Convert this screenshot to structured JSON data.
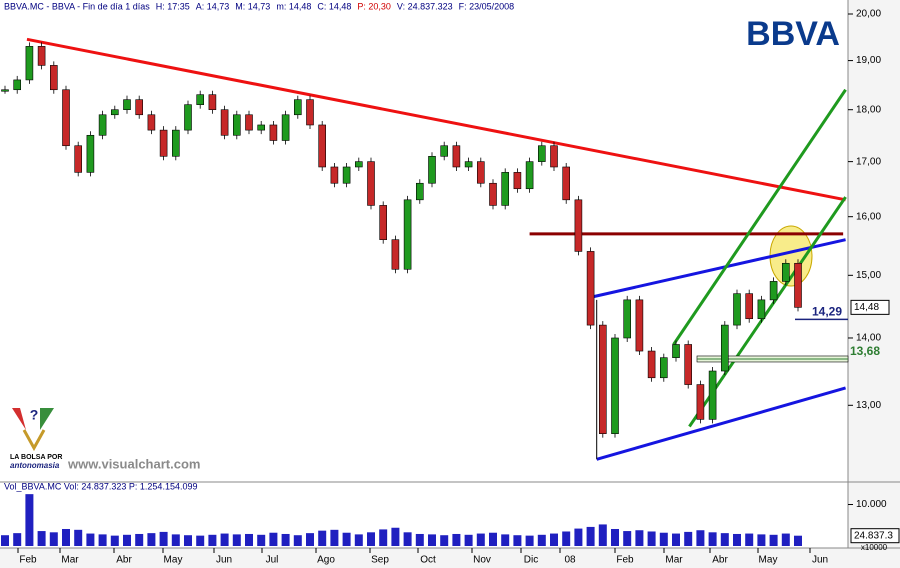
{
  "chart_data": {
    "type": "candlestick",
    "header": [
      "BBVA.MC - BBVA - Fin de día 1 días",
      "H: 17:35",
      "A: 14,73",
      "M: 14,73",
      "m: 14,48",
      "C: 14,48",
      "P: 20,30",
      "V: 24.837.323",
      "F: 23/05/2008"
    ],
    "logo": "BBVA",
    "watermark": "www.visualchart.com",
    "badge": [
      "LA BOLSA POR",
      "antonomasia"
    ],
    "months": [
      "Feb",
      "Mar",
      "Abr",
      "May",
      "Jun",
      "Jul",
      "Ago",
      "Sep",
      "Oct",
      "Nov",
      "Dic",
      "08",
      "Feb",
      "Mar",
      "Abr",
      "May",
      "Jun"
    ],
    "log_scale": true,
    "ylim": [
      12,
      20
    ],
    "yticks": [
      {
        "value": 20,
        "label": "20,00"
      },
      {
        "value": 19,
        "label": "19,00"
      },
      {
        "value": 18,
        "label": "18,00"
      },
      {
        "value": 17,
        "label": "17,00"
      },
      {
        "value": 16,
        "label": "16,00"
      },
      {
        "value": 15,
        "label": "15,00"
      },
      {
        "value": 14,
        "label": "14,00"
      },
      {
        "value": 13,
        "label": "13,00"
      }
    ],
    "close": [
      18.4,
      18.6,
      19.3,
      18.9,
      18.4,
      17.3,
      16.8,
      17.5,
      17.9,
      18.0,
      18.2,
      17.9,
      17.6,
      17.1,
      17.6,
      18.1,
      18.3,
      18.0,
      17.5,
      17.9,
      17.6,
      17.7,
      17.4,
      17.9,
      18.2,
      17.7,
      16.9,
      16.6,
      16.9,
      17.0,
      16.2,
      15.6,
      15.1,
      16.3,
      16.6,
      17.1,
      17.3,
      16.9,
      17.0,
      16.6,
      16.2,
      16.8,
      16.5,
      17.0,
      17.3,
      16.9,
      16.3,
      15.4,
      14.2,
      12.6,
      14.0,
      14.6,
      13.8,
      13.4,
      13.7,
      13.9,
      13.3,
      12.8,
      13.5,
      14.2,
      14.7,
      14.3,
      14.6,
      14.9,
      15.2,
      14.48
    ],
    "last": {
      "value": 14.48,
      "label": "14,48"
    },
    "levels": [
      {
        "value": 14.29,
        "label": "14,29",
        "color": "#1a237e"
      },
      {
        "value": 13.68,
        "label": "13,68",
        "color": "#2e7d32"
      }
    ],
    "trendlines": [
      {
        "color": "#ee1111",
        "x": [
          1.8,
          68.9
        ],
        "y": [
          19.45,
          16.3
        ]
      },
      {
        "color": "#8b0000",
        "x": [
          43,
          68.7
        ],
        "y": [
          15.7,
          15.7
        ]
      },
      {
        "color": "#1515e0",
        "x": [
          48.2,
          68.9
        ],
        "y": [
          14.65,
          15.6
        ]
      },
      {
        "color": "#1515e0",
        "x": [
          48.5,
          68.9
        ],
        "y": [
          12.25,
          13.25
        ]
      },
      {
        "color": "#000000",
        "x": [
          48.5,
          48.5
        ],
        "y": [
          14.6,
          12.25
        ]
      },
      {
        "color": "#1f9a1f",
        "x": [
          54.8,
          68.9
        ],
        "y": [
          13.9,
          18.4
        ]
      },
      {
        "color": "#1f9a1f",
        "x": [
          56.1,
          68.9
        ],
        "y": [
          12.7,
          16.35
        ]
      }
    ],
    "volume": {
      "title": "Vol_BBVA.MC Vol: 24.837.323 P: 1.254.154.099",
      "ylim": [
        0,
        13500
      ],
      "yticks": [
        {
          "value": 10000,
          "label": "10.000"
        }
      ],
      "unit": "x10000",
      "last": {
        "value": 2483.7,
        "label": "24.837.3"
      },
      "values": [
        2600,
        3100,
        12500,
        3600,
        3300,
        4100,
        3900,
        3000,
        2800,
        2500,
        2700,
        2900,
        3100,
        3400,
        2800,
        2600,
        2500,
        2700,
        3000,
        2800,
        2900,
        2700,
        3200,
        2900,
        2600,
        3100,
        3700,
        3900,
        3200,
        2800,
        3300,
        4000,
        4400,
        3300,
        2900,
        2800,
        2600,
        2900,
        2700,
        3000,
        3200,
        2800,
        2600,
        2500,
        2700,
        3000,
        3500,
        4200,
        4600,
        5200,
        4100,
        3600,
        3800,
        3500,
        3200,
        3000,
        3400,
        3800,
        3300,
        3100,
        2900,
        3000,
        2800,
        2700,
        3000,
        2483.7
      ]
    }
  }
}
